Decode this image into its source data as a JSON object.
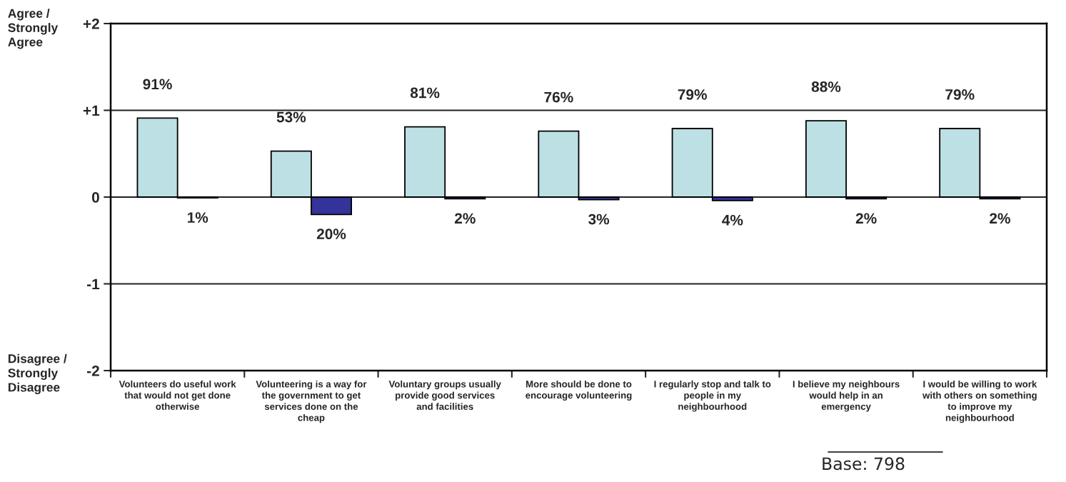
{
  "chart_data": {
    "type": "bar",
    "categories": [
      "Volunteers do useful work\nthat would not get done\notherwise",
      "Volunteering is a way for\nthe government to get\nservices done on the\ncheap",
      "Voluntary groups usually\nprovide good services\nand facilities",
      "More should be done to\nencourage volunteering",
      "I regularly stop and talk to\npeople in my\nneighbourhood",
      "I believe my neighbours\nwould help in an\nemergency",
      "I would be willing to work\nwith others on something\nto improve my\nneighbourhood"
    ],
    "series": [
      {
        "color": "#bce0e3",
        "values": [
          0.91,
          0.53,
          0.81,
          0.76,
          0.79,
          0.88,
          0.79
        ],
        "value_labels": [
          "91%",
          "53%",
          "81%",
          "76%",
          "79%",
          "88%",
          "79%"
        ]
      },
      {
        "color": "#333399",
        "values": [
          0.01,
          0.2,
          0.02,
          0.03,
          0.04,
          0.02,
          0.02
        ],
        "base": [
          -0.01,
          -0.2,
          -0.02,
          -0.03,
          -0.04,
          -0.02,
          -0.02
        ],
        "value_labels": [
          "1%",
          "20%",
          "2%",
          "3%",
          "4%",
          "2%",
          "2%"
        ]
      }
    ],
    "ylim": [
      -2,
      2
    ],
    "yticks": [
      -2,
      -1,
      0,
      {
        "value": 1,
        "label": "+1"
      },
      {
        "value": 2,
        "label": "+2"
      }
    ],
    "grid": "y",
    "annotations": [
      "Agree /\nStrongly\nAgree",
      "Disagree /\nStrongly\nDisagree",
      "Base: 798"
    ]
  }
}
